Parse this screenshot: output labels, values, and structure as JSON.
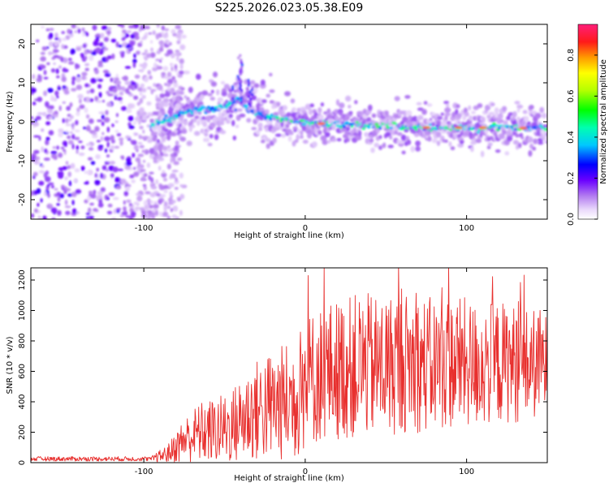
{
  "figure_title": "S225.2026.023.05.38.E09",
  "chart_data": [
    {
      "type": "heatmap",
      "title": "S225.2026.023.05.38.E09",
      "xlabel": "Height of straight line (km)",
      "ylabel": "Frequency (Hz)",
      "xlim": [
        -170,
        150
      ],
      "ylim": [
        -25,
        25
      ],
      "xticks": [
        -100,
        0,
        100
      ],
      "xtick_labels": [
        "-100",
        "0",
        "100"
      ],
      "yticks": [
        -20,
        -10,
        0,
        10,
        20
      ],
      "ytick_labels": [
        "-20",
        "-10",
        "0",
        "10",
        "20"
      ],
      "colorbar": {
        "label": "Normalized spectral amplitude",
        "range": [
          0,
          0.95
        ],
        "ticks": [
          0,
          0.2,
          0.4,
          0.6,
          0.8
        ],
        "tick_labels": [
          "0.0",
          "0.2",
          "0.4",
          "0.6",
          "0.8"
        ]
      },
      "features": {
        "noise_region_x": [
          -170,
          -85
        ],
        "ridge": {
          "x": [
            -95,
            -90,
            -85,
            -80,
            -75,
            -70,
            -65,
            -60,
            -55,
            -50,
            -45,
            -40,
            -35,
            -30,
            -25,
            -20,
            -15,
            -10,
            -5,
            0,
            10,
            20,
            30,
            40,
            50,
            60,
            70,
            80,
            90,
            100,
            110,
            120,
            130,
            140,
            150
          ],
          "y": [
            -1,
            0,
            0.5,
            1.5,
            2.5,
            3,
            3,
            3.5,
            3.5,
            4,
            5,
            6,
            3,
            2,
            1.5,
            1,
            0.5,
            0.5,
            0,
            0,
            -0.5,
            -0.5,
            -0.8,
            -1,
            -1,
            -1.2,
            -1.3,
            -1.5,
            -1.5,
            -1.5,
            -1.5,
            -1.5,
            -1.6,
            -1.6,
            -1.6
          ]
        },
        "hotspots": [
          {
            "x": 10,
            "y": -0.5
          },
          {
            "x": 75,
            "y": -1.5
          },
          {
            "x": 95,
            "y": -1.5
          },
          {
            "x": 110,
            "y": -1.5
          },
          {
            "x": 135,
            "y": -1.6
          }
        ]
      }
    },
    {
      "type": "line",
      "xlabel": "Height of straight line (km)",
      "ylabel": "SNR (10 * v/v)",
      "xlim": [
        -170,
        150
      ],
      "ylim": [
        0,
        1280
      ],
      "xticks": [
        -100,
        0,
        100
      ],
      "xtick_labels": [
        "-100",
        "0",
        "100"
      ],
      "yticks": [
        0,
        200,
        400,
        600,
        800,
        1000,
        1200
      ],
      "ytick_labels": [
        "0",
        "200",
        "400",
        "600",
        "800",
        "1000",
        "1200"
      ],
      "color": "#e8302e",
      "envelope": {
        "x": [
          -170,
          -120,
          -95,
          -85,
          -75,
          -65,
          -55,
          -45,
          -35,
          -25,
          -15,
          -5,
          0,
          5,
          15,
          25,
          35,
          45,
          55,
          65,
          75,
          85,
          95,
          105,
          115,
          125,
          135,
          150
        ],
        "mean": [
          20,
          20,
          25,
          60,
          150,
          200,
          210,
          240,
          320,
          360,
          390,
          420,
          520,
          560,
          600,
          620,
          640,
          630,
          650,
          660,
          640,
          650,
          660,
          640,
          650,
          660,
          640,
          660
        ],
        "amp": [
          20,
          20,
          20,
          60,
          150,
          200,
          220,
          250,
          320,
          360,
          380,
          420,
          440,
          450,
          460,
          470,
          480,
          470,
          470,
          460,
          450,
          440,
          440,
          420,
          410,
          400,
          380,
          350
        ]
      }
    }
  ]
}
